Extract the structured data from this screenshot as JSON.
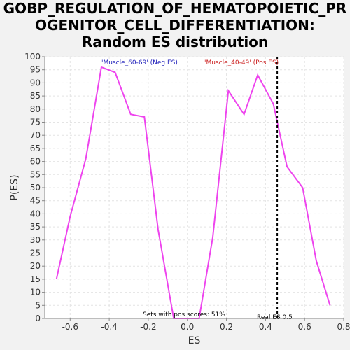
{
  "title_lines": [
    "GOBP_REGULATION_OF_HEMATOPOIETIC_PR",
    "OGENITOR_CELL_DIFFERENTIATION:",
    "Random ES distribution"
  ],
  "colors": {
    "line": "#ee44ee",
    "neg_label": "#2222bb",
    "pos_label": "#cc2222",
    "plot_bg": "#ffffff",
    "grid": "#e4e4e4",
    "marker": "#000000"
  },
  "chart_data": {
    "type": "line",
    "title": "GOBP_REGULATION_OF_HEMATOPOIETIC_PROGENITOR_CELL_DIFFERENTIATION: Random ES distribution",
    "xlabel": "ES",
    "ylabel": "P(ES)",
    "xlim": [
      -0.73,
      0.8
    ],
    "ylim": [
      0,
      100
    ],
    "xticks": [
      -0.6,
      -0.4,
      -0.2,
      0.0,
      0.2,
      0.4,
      0.6,
      0.8
    ],
    "xtick_labels": [
      "-0.6",
      "-0.4",
      "-0.2",
      "0.0",
      "0.2",
      "0.4",
      "0.6",
      "0.8"
    ],
    "yticks": [
      0,
      5,
      10,
      15,
      20,
      25,
      30,
      35,
      40,
      45,
      50,
      55,
      60,
      65,
      70,
      75,
      80,
      85,
      90,
      95,
      100
    ],
    "grid": true,
    "series": [
      {
        "x": [
          -0.67,
          -0.6,
          -0.52,
          -0.44,
          -0.37,
          -0.29,
          -0.22,
          -0.15,
          -0.07,
          0.0,
          0.06,
          0.13,
          0.21,
          0.29,
          0.36,
          0.44,
          0.51,
          0.59,
          0.66,
          0.73
        ],
        "y": [
          15,
          39,
          61,
          96,
          94,
          78,
          77,
          34,
          0,
          0,
          0,
          31,
          87,
          78,
          93,
          82,
          58,
          50,
          22,
          5
        ]
      }
    ],
    "annotations": {
      "neg_label": "'Muscle_60-69' (Neg ES)",
      "pos_label": "'Muscle_40-49' (Pos ES)",
      "pos_scores": "Sets with pos scores: 51%",
      "real_es_label": "Real ES 0.5",
      "real_es_x": 0.46
    }
  }
}
